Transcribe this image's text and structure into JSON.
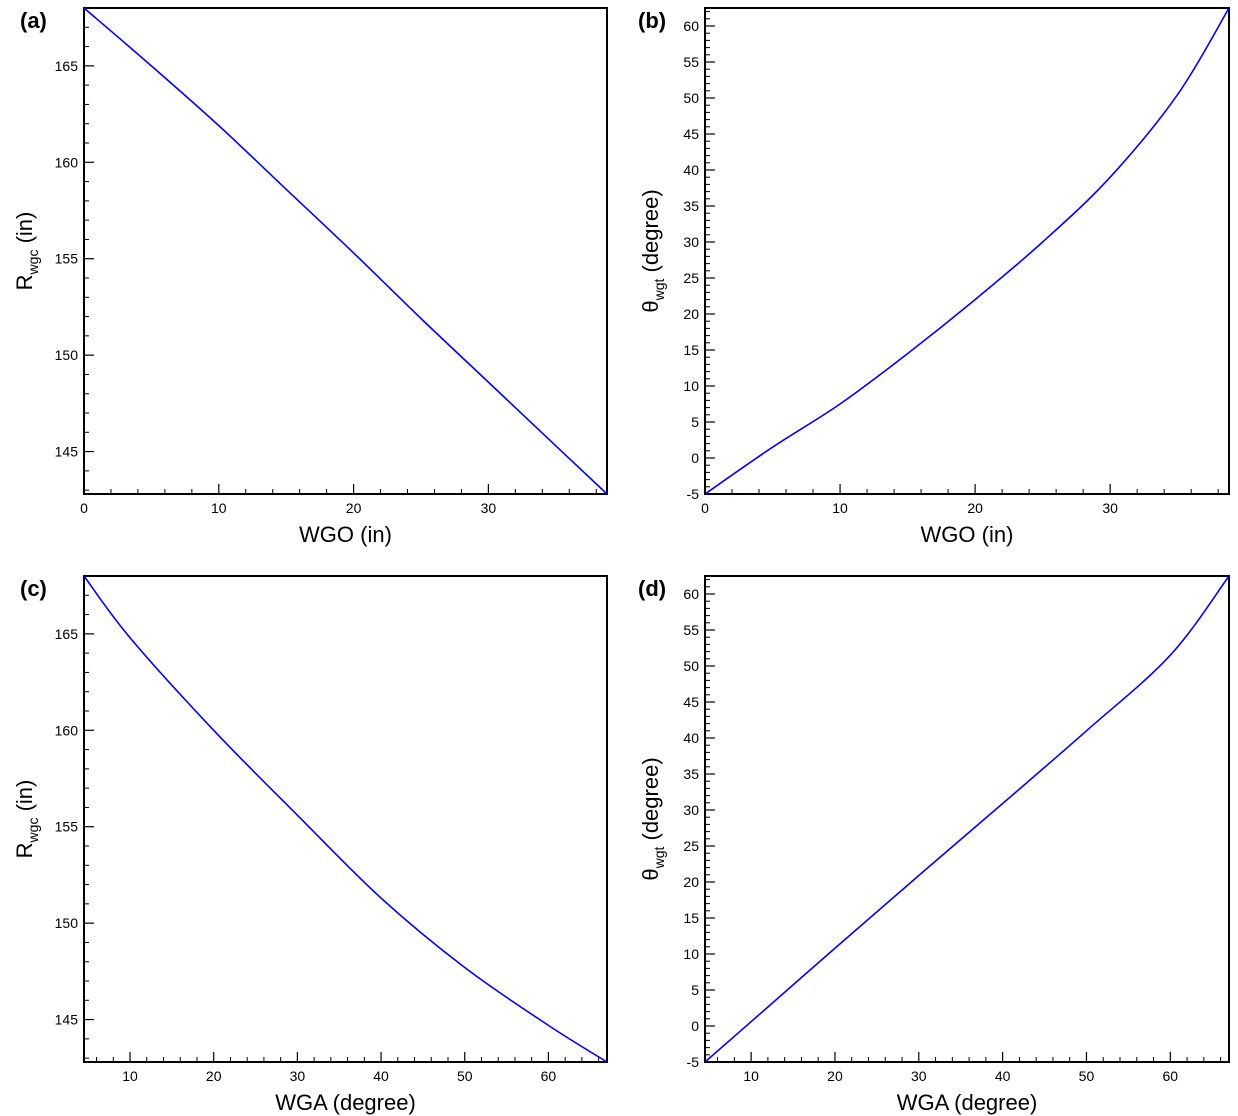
{
  "chart_data": [
    {
      "panel": "(a)",
      "type": "line",
      "xlabel": "WGO (in)",
      "ylabel_main": "R",
      "ylabel_sub": "wgc",
      "ylabel_unit": " (in)",
      "xlim": [
        0,
        38.8
      ],
      "ylim": [
        142.8,
        168.0
      ],
      "xticks": [
        0,
        10,
        20,
        30
      ],
      "yticks": [
        145,
        150,
        155,
        160,
        165
      ],
      "xminor": 2,
      "yminor": 1,
      "color": "#0000ff",
      "series": [
        {
          "x": [
            0,
            5,
            10,
            15,
            20,
            25,
            30,
            35,
            38.8
          ],
          "y": [
            168.0,
            165.0,
            161.9,
            158.6,
            155.3,
            151.9,
            148.6,
            145.3,
            142.8
          ]
        }
      ]
    },
    {
      "panel": "(b)",
      "type": "line",
      "xlabel": "WGO (in)",
      "ylabel_main": "θ",
      "ylabel_sub": "wgt",
      "ylabel_unit": " (degree)",
      "xlim": [
        0,
        38.8
      ],
      "ylim": [
        -5,
        62.5
      ],
      "xticks": [
        0,
        10,
        20,
        30
      ],
      "yticks": [
        -5,
        0,
        5,
        10,
        15,
        20,
        25,
        30,
        35,
        40,
        45,
        50,
        55,
        60
      ],
      "xminor": 2,
      "yminor": 1,
      "color": "#0000ff",
      "series": [
        {
          "x": [
            0,
            5,
            10,
            15,
            20,
            25,
            30,
            35,
            38.8
          ],
          "y": [
            -5.0,
            1.5,
            7.5,
            14.5,
            22.0,
            30.0,
            39.0,
            50.5,
            62.5
          ]
        }
      ]
    },
    {
      "panel": "(c)",
      "type": "line",
      "xlabel": "WGA (degree)",
      "ylabel_main": "R",
      "ylabel_sub": "wgc",
      "ylabel_unit": " (in)",
      "xlim": [
        4.5,
        67
      ],
      "ylim": [
        142.8,
        168.0
      ],
      "xticks": [
        10,
        20,
        30,
        40,
        50,
        60
      ],
      "yticks": [
        145,
        150,
        155,
        160,
        165
      ],
      "xminor": 2,
      "yminor": 1,
      "color": "#0000ff",
      "series": [
        {
          "x": [
            4.5,
            10,
            20,
            30,
            40,
            50,
            60,
            67
          ],
          "y": [
            168.0,
            164.8,
            160.0,
            155.6,
            151.3,
            147.7,
            144.7,
            142.8
          ]
        }
      ]
    },
    {
      "panel": "(d)",
      "type": "line",
      "xlabel": "WGA (degree)",
      "ylabel_main": "θ",
      "ylabel_sub": "wgt",
      "ylabel_unit": " (degree)",
      "xlim": [
        4.5,
        67
      ],
      "ylim": [
        -5,
        62.5
      ],
      "xticks": [
        10,
        20,
        30,
        40,
        50,
        60
      ],
      "yticks": [
        -5,
        0,
        5,
        10,
        15,
        20,
        25,
        30,
        35,
        40,
        45,
        50,
        55,
        60
      ],
      "xminor": 2,
      "yminor": 1,
      "color": "#0000ff",
      "series": [
        {
          "x": [
            4.5,
            10,
            20,
            30,
            40,
            50,
            60,
            67
          ],
          "y": [
            -5.0,
            0.6,
            10.8,
            20.9,
            30.9,
            41.0,
            51.5,
            62.5
          ]
        }
      ]
    }
  ]
}
